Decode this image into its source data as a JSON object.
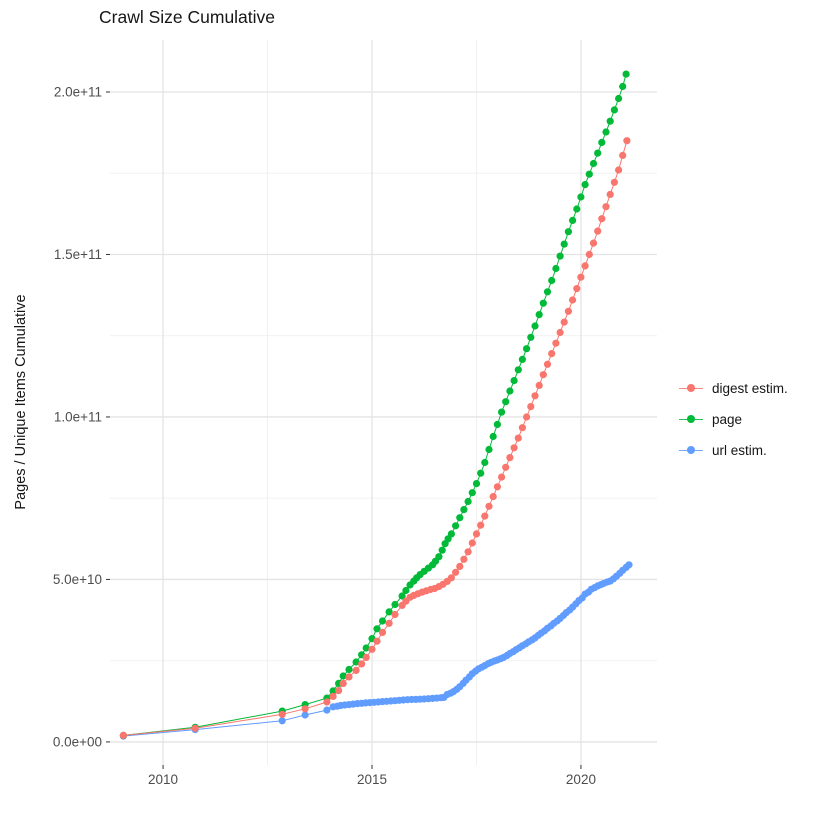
{
  "title": "Crawl Size Cumulative",
  "legend": [
    {
      "label": "digest estim.",
      "color": "#F8766D"
    },
    {
      "label": "page",
      "color": "#00BA38"
    },
    {
      "label": "url estim.",
      "color": "#619CFF"
    }
  ],
  "colors": {
    "background": "#ffffff",
    "grid_major": "#e4e4e4",
    "grid_minor": "#f0f0f0",
    "tick_mark": "#333333",
    "tick_label": "#4d4d4d",
    "text": "#161616"
  },
  "chart_data": {
    "type": "line",
    "title": "Crawl Size Cumulative",
    "xlabel": "",
    "ylabel": "Pages / Unique Items Cumulative",
    "legend_position": "right",
    "grid": true,
    "y_value_unit": "billions (1e9)",
    "xlim": [
      2008.73,
      2021.82
    ],
    "ylim_e9": [
      -7.1,
      216
    ],
    "x_ticks": [
      2010,
      2015,
      2020
    ],
    "x_tick_labels": [
      "2010",
      "2015",
      "2020"
    ],
    "x_minor": [
      2012.5,
      2017.5
    ],
    "y_ticks_e9": [
      0,
      50,
      100,
      150,
      200
    ],
    "y_tick_labels": [
      "0.0e+00",
      "5.0e+10",
      "1.0e+11",
      "1.5e+11",
      "2.0e+11"
    ],
    "y_minor_e9": [
      25,
      75,
      125,
      175
    ],
    "series": [
      {
        "name": "url estim.",
        "color": "#619CFF",
        "points": [
          [
            2009.05,
            1.8
          ],
          [
            2010.77,
            3.8
          ],
          [
            2012.85,
            6.5
          ],
          [
            2013.4,
            8.3
          ],
          [
            2013.92,
            9.8
          ],
          [
            2014.07,
            10.8
          ],
          [
            2014.17,
            11.0
          ],
          [
            2014.25,
            11.2
          ],
          [
            2014.35,
            11.35
          ],
          [
            2014.45,
            11.5
          ],
          [
            2014.55,
            11.65
          ],
          [
            2014.65,
            11.8
          ],
          [
            2014.75,
            11.9
          ],
          [
            2014.85,
            12.0
          ],
          [
            2014.95,
            12.1
          ],
          [
            2015.05,
            12.2
          ],
          [
            2015.15,
            12.3
          ],
          [
            2015.25,
            12.4
          ],
          [
            2015.35,
            12.5
          ],
          [
            2015.45,
            12.6
          ],
          [
            2015.55,
            12.7
          ],
          [
            2015.65,
            12.8
          ],
          [
            2015.75,
            12.9
          ],
          [
            2015.85,
            13.0
          ],
          [
            2015.95,
            13.05
          ],
          [
            2016.05,
            13.1
          ],
          [
            2016.15,
            13.15
          ],
          [
            2016.25,
            13.2
          ],
          [
            2016.35,
            13.3
          ],
          [
            2016.45,
            13.4
          ],
          [
            2016.55,
            13.5
          ],
          [
            2016.65,
            13.6
          ],
          [
            2016.72,
            13.7
          ],
          [
            2016.8,
            14.6
          ],
          [
            2016.88,
            15.0
          ],
          [
            2016.95,
            15.5
          ],
          [
            2017.03,
            16.2
          ],
          [
            2017.1,
            17
          ],
          [
            2017.18,
            18
          ],
          [
            2017.25,
            19
          ],
          [
            2017.33,
            20
          ],
          [
            2017.4,
            21
          ],
          [
            2017.48,
            21.8
          ],
          [
            2017.55,
            22.5
          ],
          [
            2017.63,
            23
          ],
          [
            2017.7,
            23.5
          ],
          [
            2017.78,
            24.1
          ],
          [
            2017.85,
            24.5
          ],
          [
            2017.93,
            24.9
          ],
          [
            2018.0,
            25.2
          ],
          [
            2018.08,
            25.6
          ],
          [
            2018.15,
            26
          ],
          [
            2018.23,
            26.6
          ],
          [
            2018.3,
            27.2
          ],
          [
            2018.38,
            27.8
          ],
          [
            2018.45,
            28.4
          ],
          [
            2018.53,
            29
          ],
          [
            2018.6,
            29.6
          ],
          [
            2018.68,
            30.2
          ],
          [
            2018.75,
            30.8
          ],
          [
            2018.83,
            31.4
          ],
          [
            2018.9,
            32
          ],
          [
            2018.98,
            32.8
          ],
          [
            2019.05,
            33.5
          ],
          [
            2019.13,
            34.2
          ],
          [
            2019.2,
            35
          ],
          [
            2019.28,
            35.7
          ],
          [
            2019.35,
            36.5
          ],
          [
            2019.43,
            37.2
          ],
          [
            2019.5,
            38
          ],
          [
            2019.58,
            38.9
          ],
          [
            2019.65,
            39.8
          ],
          [
            2019.73,
            40.6
          ],
          [
            2019.8,
            41.5
          ],
          [
            2019.88,
            42.5
          ],
          [
            2019.95,
            43.5
          ],
          [
            2020.03,
            44.3
          ],
          [
            2020.1,
            45.5
          ],
          [
            2020.18,
            46.1
          ],
          [
            2020.25,
            47
          ],
          [
            2020.33,
            47.5
          ],
          [
            2020.4,
            48
          ],
          [
            2020.48,
            48.4
          ],
          [
            2020.55,
            48.8
          ],
          [
            2020.63,
            49.2
          ],
          [
            2020.7,
            49.5
          ],
          [
            2020.78,
            50.2
          ],
          [
            2020.85,
            51
          ],
          [
            2020.93,
            51.9
          ],
          [
            2021.0,
            52.8
          ],
          [
            2021.08,
            53.7
          ],
          [
            2021.15,
            54.5
          ]
        ]
      },
      {
        "name": "page",
        "color": "#00BA38",
        "points": [
          [
            2009.05,
            2
          ],
          [
            2010.77,
            4.5
          ],
          [
            2012.85,
            9.5
          ],
          [
            2013.4,
            11.5
          ],
          [
            2013.92,
            13.5
          ],
          [
            2014.07,
            15.7
          ],
          [
            2014.2,
            18
          ],
          [
            2014.31,
            20.3
          ],
          [
            2014.45,
            22.3
          ],
          [
            2014.62,
            24.6
          ],
          [
            2014.75,
            26.8
          ],
          [
            2014.86,
            28.9
          ],
          [
            2015.0,
            31.8
          ],
          [
            2015.12,
            34.8
          ],
          [
            2015.25,
            37.2
          ],
          [
            2015.41,
            40
          ],
          [
            2015.55,
            42.3
          ],
          [
            2015.72,
            44.9
          ],
          [
            2015.81,
            46.6
          ],
          [
            2015.91,
            48.3
          ],
          [
            2016.0,
            49.5
          ],
          [
            2016.07,
            50.5
          ],
          [
            2016.15,
            51.5
          ],
          [
            2016.25,
            52.5
          ],
          [
            2016.35,
            53.5
          ],
          [
            2016.45,
            54.5
          ],
          [
            2016.52,
            55.6
          ],
          [
            2016.6,
            57
          ],
          [
            2016.68,
            59
          ],
          [
            2016.75,
            61
          ],
          [
            2016.82,
            62.5
          ],
          [
            2016.9,
            64
          ],
          [
            2017.0,
            66.5
          ],
          [
            2017.1,
            69
          ],
          [
            2017.2,
            71.5
          ],
          [
            2017.3,
            74
          ],
          [
            2017.4,
            76.7
          ],
          [
            2017.5,
            79.5
          ],
          [
            2017.6,
            82.7
          ],
          [
            2017.7,
            86
          ],
          [
            2017.8,
            90
          ],
          [
            2017.9,
            94
          ],
          [
            2018.0,
            97.7
          ],
          [
            2018.1,
            101.5
          ],
          [
            2018.2,
            104.7
          ],
          [
            2018.3,
            108
          ],
          [
            2018.4,
            111.2
          ],
          [
            2018.5,
            114.5
          ],
          [
            2018.6,
            117.7
          ],
          [
            2018.7,
            121
          ],
          [
            2018.8,
            124.5
          ],
          [
            2018.9,
            128
          ],
          [
            2019.0,
            131.5
          ],
          [
            2019.1,
            135
          ],
          [
            2019.2,
            138.5
          ],
          [
            2019.3,
            142
          ],
          [
            2019.4,
            145.7
          ],
          [
            2019.5,
            149.5
          ],
          [
            2019.6,
            153.2
          ],
          [
            2019.7,
            157
          ],
          [
            2019.8,
            160.5
          ],
          [
            2019.9,
            164
          ],
          [
            2020.0,
            167.7
          ],
          [
            2020.1,
            171.5
          ],
          [
            2020.2,
            174.7
          ],
          [
            2020.3,
            178
          ],
          [
            2020.4,
            181.2
          ],
          [
            2020.5,
            184.5
          ],
          [
            2020.6,
            187.7
          ],
          [
            2020.7,
            191
          ],
          [
            2020.8,
            194.5
          ],
          [
            2020.9,
            198
          ],
          [
            2021.0,
            201.7
          ],
          [
            2021.08,
            205.5
          ]
        ]
      },
      {
        "name": "digest estim.",
        "color": "#F8766D",
        "points": [
          [
            2009.05,
            2
          ],
          [
            2010.77,
            4.2
          ],
          [
            2012.85,
            8.5
          ],
          [
            2013.4,
            10.2
          ],
          [
            2013.92,
            12.3
          ],
          [
            2014.07,
            14
          ],
          [
            2014.2,
            15.8
          ],
          [
            2014.31,
            18
          ],
          [
            2014.45,
            20
          ],
          [
            2014.62,
            22
          ],
          [
            2014.75,
            24
          ],
          [
            2014.86,
            26
          ],
          [
            2015.0,
            28.5
          ],
          [
            2015.12,
            31
          ],
          [
            2015.25,
            33.7
          ],
          [
            2015.41,
            36.5
          ],
          [
            2015.55,
            39.2
          ],
          [
            2015.72,
            42
          ],
          [
            2015.81,
            43.3
          ],
          [
            2015.91,
            44.5
          ],
          [
            2016.0,
            45.1
          ],
          [
            2016.1,
            45.6
          ],
          [
            2016.2,
            46.1
          ],
          [
            2016.3,
            46.5
          ],
          [
            2016.4,
            46.9
          ],
          [
            2016.5,
            47.2
          ],
          [
            2016.6,
            47.8
          ],
          [
            2016.7,
            48.5
          ],
          [
            2016.8,
            49.4
          ],
          [
            2016.9,
            50.5
          ],
          [
            2017.0,
            52.2
          ],
          [
            2017.1,
            54
          ],
          [
            2017.2,
            56.2
          ],
          [
            2017.3,
            58.5
          ],
          [
            2017.4,
            61.2
          ],
          [
            2017.5,
            64
          ],
          [
            2017.6,
            66.7
          ],
          [
            2017.7,
            69.5
          ],
          [
            2017.8,
            72.5
          ],
          [
            2017.9,
            75.5
          ],
          [
            2018.0,
            78.5
          ],
          [
            2018.1,
            81.5
          ],
          [
            2018.2,
            84.5
          ],
          [
            2018.3,
            87.5
          ],
          [
            2018.4,
            90.5
          ],
          [
            2018.5,
            93.5
          ],
          [
            2018.6,
            96.7
          ],
          [
            2018.7,
            100
          ],
          [
            2018.8,
            103.2
          ],
          [
            2018.9,
            106.5
          ],
          [
            2019.0,
            109.7
          ],
          [
            2019.1,
            113
          ],
          [
            2019.2,
            116.2
          ],
          [
            2019.3,
            119.5
          ],
          [
            2019.4,
            122.7
          ],
          [
            2019.5,
            126
          ],
          [
            2019.6,
            129.2
          ],
          [
            2019.7,
            132.5
          ],
          [
            2019.8,
            136
          ],
          [
            2019.9,
            139.5
          ],
          [
            2020.0,
            143
          ],
          [
            2020.1,
            146.5
          ],
          [
            2020.2,
            150
          ],
          [
            2020.3,
            153.5
          ],
          [
            2020.4,
            157.2
          ],
          [
            2020.5,
            161
          ],
          [
            2020.6,
            164.7
          ],
          [
            2020.7,
            168.5
          ],
          [
            2020.8,
            172.2
          ],
          [
            2020.9,
            176
          ],
          [
            2021.0,
            180.5
          ],
          [
            2021.1,
            185
          ]
        ]
      }
    ]
  }
}
